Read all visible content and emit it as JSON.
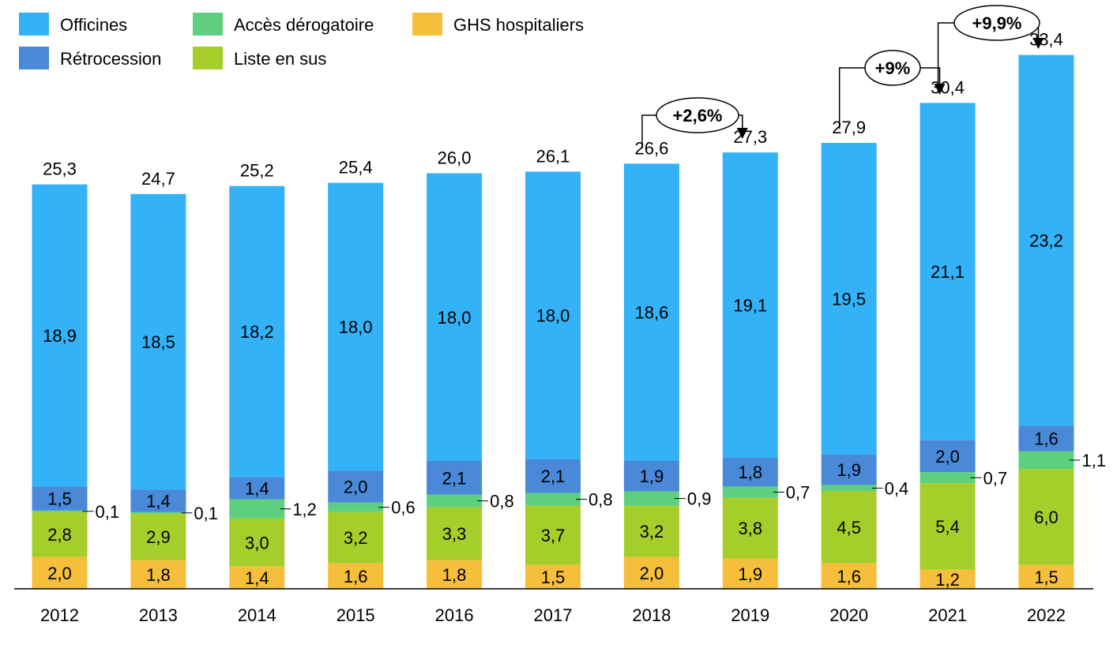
{
  "chart_data": {
    "type": "bar",
    "stacked": true,
    "categories": [
      "2012",
      "2013",
      "2014",
      "2015",
      "2016",
      "2017",
      "2018",
      "2019",
      "2020",
      "2021",
      "2022"
    ],
    "series": [
      {
        "name": "GHS hospitaliers",
        "color": "#F5BF3C",
        "values": [
          2.0,
          1.8,
          1.4,
          1.6,
          1.8,
          1.5,
          2.0,
          1.9,
          1.6,
          1.2,
          1.5
        ],
        "labels": [
          "2,0",
          "1,8",
          "1,4",
          "1,6",
          "1,8",
          "1,5",
          "2,0",
          "1,9",
          "1,6",
          "1,2",
          "1,5"
        ]
      },
      {
        "name": "Liste en sus",
        "color": "#A5CE2A",
        "values": [
          2.8,
          2.9,
          3.0,
          3.2,
          3.3,
          3.7,
          3.2,
          3.8,
          4.5,
          5.4,
          6.0
        ],
        "labels": [
          "2,8",
          "2,9",
          "3,0",
          "3,2",
          "3,3",
          "3,7",
          "3,2",
          "3,8",
          "4,5",
          "5,4",
          "6,0"
        ]
      },
      {
        "name": "Accès dérogatoire",
        "color": "#5DCF7E",
        "values": [
          0.1,
          0.1,
          1.2,
          0.6,
          0.8,
          0.8,
          0.9,
          0.7,
          0.4,
          0.7,
          1.1
        ],
        "labels": [
          "0,1",
          "0,1",
          "1,2",
          "0,6",
          "0,8",
          "0,8",
          "0,9",
          "0,7",
          "0,4",
          "0,7",
          "1,1"
        ]
      },
      {
        "name": "Rétrocession",
        "color": "#4A88D8",
        "values": [
          1.5,
          1.4,
          1.4,
          2.0,
          2.1,
          2.1,
          1.9,
          1.8,
          1.9,
          2.0,
          1.6
        ],
        "labels": [
          "1,5",
          "1,4",
          "1,4",
          "2,0",
          "2,1",
          "2,1",
          "1,9",
          "1,8",
          "1,9",
          "2,0",
          "1,6"
        ]
      },
      {
        "name": "Officines",
        "color": "#33B2F7",
        "values": [
          18.9,
          18.5,
          18.2,
          18.0,
          18.0,
          18.0,
          18.6,
          19.1,
          19.5,
          21.1,
          23.2
        ],
        "labels": [
          "18,9",
          "18,5",
          "18,2",
          "18,0",
          "18,0",
          "18,0",
          "18,6",
          "19,1",
          "19,5",
          "21,1",
          "23,2"
        ]
      }
    ],
    "totals": [
      25.3,
      24.7,
      25.2,
      25.4,
      26.0,
      26.1,
      26.6,
      27.3,
      27.9,
      30.4,
      33.4
    ],
    "total_labels": [
      "25,3",
      "24,7",
      "25,2",
      "25,4",
      "26,0",
      "26,1",
      "26,6",
      "27,3",
      "27,9",
      "30,4",
      "33,4"
    ],
    "legend": {
      "order": [
        "Officines",
        "Accès dérogatoire",
        "GHS hospitaliers",
        "Rétrocession",
        "Liste en sus"
      ],
      "placement": "top-left"
    },
    "annotations": [
      {
        "label": "+2,6%",
        "from": "2018",
        "to": "2019"
      },
      {
        "label": "+9%",
        "from": "2020",
        "to": "2021"
      },
      {
        "label": "+9,9%",
        "from": "2021",
        "to": "2022"
      }
    ],
    "ylim": [
      0,
      35
    ],
    "grid": false,
    "title": "",
    "xlabel": "",
    "ylabel": ""
  }
}
